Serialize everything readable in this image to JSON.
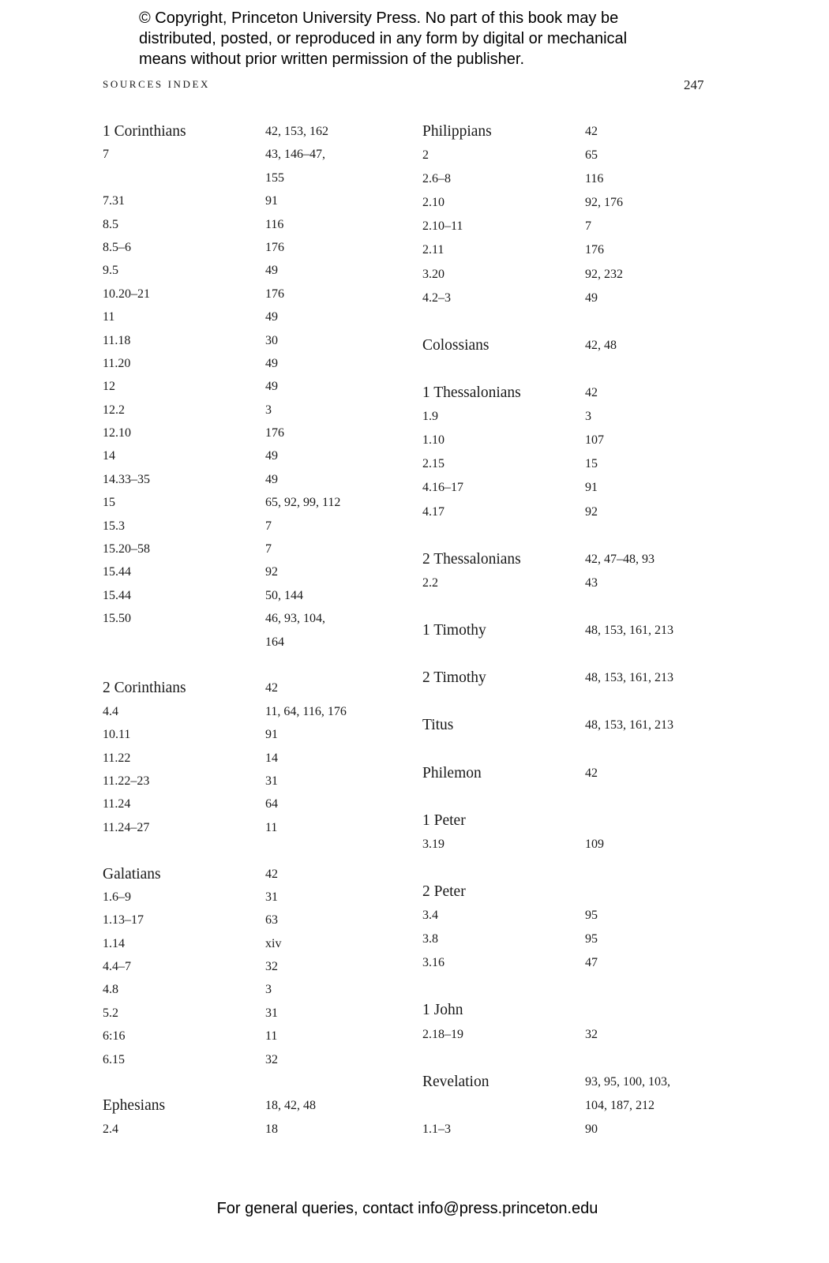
{
  "notice": [
    "© Copyright, Princeton University Press. No part of this book may be",
    "distributed, posted, or reproduced in any form by digital or mechanical",
    "means without prior written permission of the publisher."
  ],
  "running_head": "Sources Index",
  "page_number": "247",
  "columns": [
    {
      "sections": [
        {
          "heading": "1 Corinthians",
          "pages": [
            "42, 153, 162"
          ],
          "entries": [
            {
              "ref": "7",
              "pages": [
                "43, 146–47,",
                "155"
              ]
            },
            {
              "ref": "7.31",
              "pages": [
                "91"
              ]
            },
            {
              "ref": "8.5",
              "pages": [
                "116"
              ]
            },
            {
              "ref": "8.5–6",
              "pages": [
                "176"
              ]
            },
            {
              "ref": "9.5",
              "pages": [
                "49"
              ]
            },
            {
              "ref": "10.20–21",
              "pages": [
                "176"
              ]
            },
            {
              "ref": "11",
              "pages": [
                "49"
              ]
            },
            {
              "ref": "11.18",
              "pages": [
                "30"
              ]
            },
            {
              "ref": "11.20",
              "pages": [
                "49"
              ]
            },
            {
              "ref": "12",
              "pages": [
                "49"
              ]
            },
            {
              "ref": "12.2",
              "pages": [
                "3"
              ]
            },
            {
              "ref": "12.10",
              "pages": [
                "176"
              ]
            },
            {
              "ref": "14",
              "pages": [
                "49"
              ]
            },
            {
              "ref": "14.33–35",
              "pages": [
                "49"
              ]
            },
            {
              "ref": "15",
              "pages": [
                "65, 92, 99, 112"
              ]
            },
            {
              "ref": "15.3",
              "pages": [
                "7"
              ]
            },
            {
              "ref": "15.20–58",
              "pages": [
                "7"
              ]
            },
            {
              "ref": "15.44",
              "pages": [
                "92"
              ]
            },
            {
              "ref": "15.44",
              "pages": [
                "50, 144"
              ]
            },
            {
              "ref": "15.50",
              "pages": [
                "46, 93, 104,",
                "164"
              ]
            }
          ]
        },
        {
          "heading": "2 Corinthians",
          "pages": [
            "42"
          ],
          "entries": [
            {
              "ref": "4.4",
              "pages": [
                "11, 64, 116, 176"
              ]
            },
            {
              "ref": "10.11",
              "pages": [
                "91"
              ]
            },
            {
              "ref": "11.22",
              "pages": [
                "14"
              ]
            },
            {
              "ref": "11.22–23",
              "pages": [
                "31"
              ]
            },
            {
              "ref": "11.24",
              "pages": [
                "64"
              ]
            },
            {
              "ref": "11.24–27",
              "pages": [
                "11"
              ]
            }
          ]
        },
        {
          "heading": "Galatians",
          "pages": [
            "42"
          ],
          "entries": [
            {
              "ref": "1.6–9",
              "pages": [
                "31"
              ]
            },
            {
              "ref": "1.13–17",
              "pages": [
                "63"
              ]
            },
            {
              "ref": "1.14",
              "pages": [
                "xiv"
              ]
            },
            {
              "ref": "4.4–7",
              "pages": [
                "32"
              ]
            },
            {
              "ref": "4.8",
              "pages": [
                "3"
              ]
            },
            {
              "ref": "5.2",
              "pages": [
                "31"
              ]
            },
            {
              "ref": "6:16",
              "pages": [
                "11"
              ]
            },
            {
              "ref": "6.15",
              "pages": [
                "32"
              ]
            }
          ]
        },
        {
          "heading": "Ephesians",
          "pages": [
            "18, 42, 48"
          ],
          "entries": [
            {
              "ref": "2.4",
              "pages": [
                "18"
              ]
            }
          ]
        }
      ]
    },
    {
      "sections": [
        {
          "heading": "Philippians",
          "pages": [
            "42"
          ],
          "entries": [
            {
              "ref": "2",
              "pages": [
                "65"
              ]
            },
            {
              "ref": "2.6–8",
              "pages": [
                "116"
              ]
            },
            {
              "ref": "2.10",
              "pages": [
                "92, 176"
              ]
            },
            {
              "ref": "2.10–11",
              "pages": [
                "7"
              ]
            },
            {
              "ref": "2.11",
              "pages": [
                "176"
              ]
            },
            {
              "ref": "3.20",
              "pages": [
                "92, 232"
              ]
            },
            {
              "ref": "4.2–3",
              "pages": [
                "49"
              ]
            }
          ]
        },
        {
          "heading": "Colossians",
          "pages": [
            "42, 48"
          ],
          "entries": []
        },
        {
          "heading": "1 Thessalonians",
          "pages": [
            "42"
          ],
          "entries": [
            {
              "ref": "1.9",
              "pages": [
                "3"
              ]
            },
            {
              "ref": "1.10",
              "pages": [
                "107"
              ]
            },
            {
              "ref": "2.15",
              "pages": [
                "15"
              ]
            },
            {
              "ref": "4.16–17",
              "pages": [
                "91"
              ]
            },
            {
              "ref": "4.17",
              "pages": [
                "92"
              ]
            }
          ]
        },
        {
          "heading": "2 Thessalonians",
          "pages": [
            "42, 47–48, 93"
          ],
          "entries": [
            {
              "ref": "2.2",
              "pages": [
                "43"
              ]
            }
          ]
        },
        {
          "heading": "1 Timothy",
          "pages": [
            "48, 153, 161, 213"
          ],
          "entries": []
        },
        {
          "heading": "2 Timothy",
          "pages": [
            "48, 153, 161, 213"
          ],
          "entries": []
        },
        {
          "heading": "Titus",
          "pages": [
            "48, 153, 161, 213"
          ],
          "entries": []
        },
        {
          "heading": "Philemon",
          "pages": [
            "42"
          ],
          "entries": []
        },
        {
          "heading": "1 Peter",
          "pages": [],
          "entries": [
            {
              "ref": "3.19",
              "pages": [
                "109"
              ]
            }
          ]
        },
        {
          "heading": "2 Peter",
          "pages": [],
          "entries": [
            {
              "ref": "3.4",
              "pages": [
                "95"
              ]
            },
            {
              "ref": "3.8",
              "pages": [
                "95"
              ]
            },
            {
              "ref": "3.16",
              "pages": [
                "47"
              ]
            }
          ]
        },
        {
          "heading": "1 John",
          "pages": [],
          "entries": [
            {
              "ref": "2.18–19",
              "pages": [
                "32"
              ]
            }
          ]
        },
        {
          "heading": "Revelation",
          "pages": [
            "93, 95, 100, 103,",
            "104, 187, 212"
          ],
          "entries": [
            {
              "ref": "1.1–3",
              "pages": [
                "90"
              ]
            }
          ]
        }
      ]
    }
  ],
  "footer": "For general queries, contact info@press.princeton.edu"
}
